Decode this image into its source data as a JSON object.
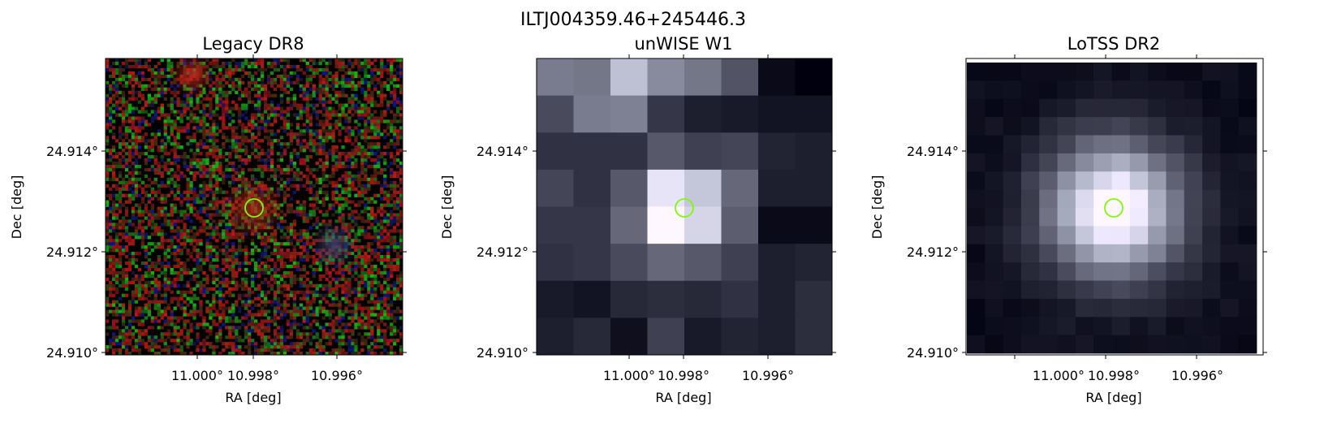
{
  "figure": {
    "suptitle": "ILTJ004359.46+245446.3"
  },
  "panels": [
    {
      "title": "Legacy DR8",
      "survey": "Legacy DR8",
      "xlabel": "RA [deg]",
      "ylabel": "Dec [deg]",
      "xticks": [
        "11.000°",
        "10.998°",
        "10.996°"
      ],
      "yticks": [
        "24.914°",
        "24.912°",
        "24.910°"
      ],
      "marker": {
        "shape": "circle",
        "color": "#7CFC00"
      },
      "style": {
        "texture": "rgb-noise",
        "background": "#000000"
      }
    },
    {
      "title": "unWISE W1",
      "survey": "unWISE W1",
      "xlabel": "RA [deg]",
      "ylabel": "Dec [deg]",
      "xticks": [
        "11.000°",
        "10.998°",
        "10.996°"
      ],
      "yticks": [
        "24.914°",
        "24.912°",
        "24.910°"
      ],
      "marker": {
        "shape": "circle",
        "color": "#7CFC00"
      },
      "style": {
        "texture": "pixel-grid",
        "colormap": "bone"
      }
    },
    {
      "title": "LoTSS DR2",
      "survey": "LoTSS DR2",
      "xlabel": "RA [deg]",
      "ylabel": "Dec [deg]",
      "xticks": [
        "11.000°",
        "10.998°",
        "10.996°"
      ],
      "yticks": [
        "24.914°",
        "24.912°",
        "24.910°"
      ],
      "marker": {
        "shape": "circle",
        "color": "#7CFC00"
      },
      "style": {
        "texture": "pixel-grid",
        "colormap": "bone"
      }
    }
  ]
}
